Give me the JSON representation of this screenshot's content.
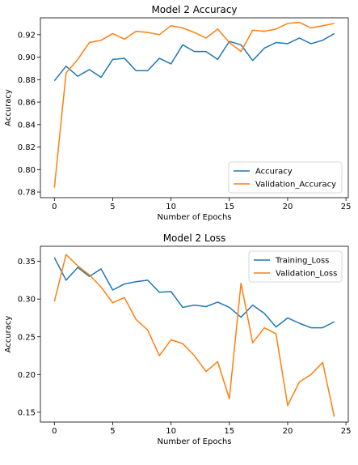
{
  "chart_data": [
    {
      "type": "line",
      "title": "Model 2 Accuracy",
      "xlabel": "Number of Epochs",
      "ylabel": "Accuracy",
      "xlim": [
        -1.2,
        25.2
      ],
      "ylim": [
        0.775,
        0.935
      ],
      "xticks": [
        0,
        5,
        10,
        15,
        20,
        25
      ],
      "yticks": [
        0.78,
        0.8,
        0.82,
        0.84,
        0.86,
        0.88,
        0.9,
        0.92
      ],
      "ytick_labels": [
        "0.78",
        "0.80",
        "0.82",
        "0.84",
        "0.86",
        "0.88",
        "0.90",
        "0.92"
      ],
      "legend_position": "lower-right",
      "grid": false,
      "x": [
        0,
        1,
        2,
        3,
        4,
        5,
        6,
        7,
        8,
        9,
        10,
        11,
        12,
        13,
        14,
        15,
        16,
        17,
        18,
        19,
        20,
        21,
        22,
        23,
        24
      ],
      "series": [
        {
          "name": "Accuracy",
          "color": "#1f77b4",
          "values": [
            0.879,
            0.892,
            0.883,
            0.889,
            0.882,
            0.898,
            0.899,
            0.888,
            0.888,
            0.899,
            0.894,
            0.911,
            0.905,
            0.905,
            0.898,
            0.914,
            0.911,
            0.897,
            0.908,
            0.913,
            0.912,
            0.917,
            0.912,
            0.915,
            0.921
          ]
        },
        {
          "name": "Validation_Accuracy",
          "color": "#ff7f0e",
          "values": [
            0.784,
            0.886,
            0.898,
            0.913,
            0.915,
            0.921,
            0.916,
            0.923,
            0.922,
            0.92,
            0.928,
            0.926,
            0.922,
            0.917,
            0.925,
            0.913,
            0.905,
            0.924,
            0.923,
            0.925,
            0.93,
            0.931,
            0.926,
            0.928,
            0.93
          ]
        }
      ]
    },
    {
      "type": "line",
      "title": "Model 2 Loss",
      "xlabel": "Number of Epochs",
      "ylabel": "Accuracy",
      "xlim": [
        -1.2,
        25.2
      ],
      "ylim": [
        0.137,
        0.37
      ],
      "xticks": [
        0,
        5,
        10,
        15,
        20,
        25
      ],
      "yticks": [
        0.15,
        0.2,
        0.25,
        0.3,
        0.35
      ],
      "ytick_labels": [
        "0.15",
        "0.20",
        "0.25",
        "0.30",
        "0.35"
      ],
      "legend_position": "top-right",
      "grid": false,
      "x": [
        0,
        1,
        2,
        3,
        4,
        5,
        6,
        7,
        8,
        9,
        10,
        11,
        12,
        13,
        14,
        15,
        16,
        17,
        18,
        19,
        20,
        21,
        22,
        23,
        24
      ],
      "series": [
        {
          "name": "Training_Loss",
          "color": "#1f77b4",
          "values": [
            0.355,
            0.325,
            0.342,
            0.33,
            0.34,
            0.312,
            0.32,
            0.323,
            0.325,
            0.309,
            0.31,
            0.289,
            0.292,
            0.29,
            0.296,
            0.289,
            0.276,
            0.292,
            0.281,
            0.263,
            0.275,
            0.268,
            0.262,
            0.262,
            0.27
          ]
        },
        {
          "name": "Validation_Loss",
          "color": "#ff7f0e",
          "values": [
            0.297,
            0.359,
            0.344,
            0.332,
            0.316,
            0.295,
            0.302,
            0.273,
            0.259,
            0.225,
            0.246,
            0.241,
            0.225,
            0.204,
            0.217,
            0.168,
            0.321,
            0.242,
            0.262,
            0.254,
            0.159,
            0.19,
            0.2,
            0.216,
            0.144
          ]
        }
      ]
    }
  ]
}
